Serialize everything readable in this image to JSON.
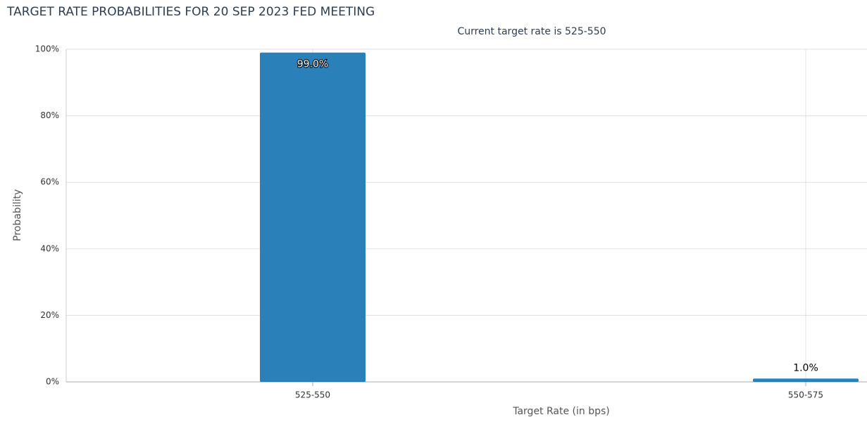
{
  "chart_data": {
    "type": "bar",
    "title": "TARGET RATE PROBABILITIES FOR 20 SEP 2023 FED MEETING",
    "subtitle": "Current target rate is 525-550",
    "x_label": "Target Rate (in bps)",
    "y_label": "Probability",
    "categories": [
      "525-550",
      "550-575"
    ],
    "values": [
      99.0,
      1.0
    ],
    "value_labels": [
      "99.0%",
      "1.0%"
    ],
    "color": "#2a80b9",
    "ylim": [
      0,
      100
    ],
    "yticks": [
      {
        "value": 0,
        "label": "0%"
      },
      {
        "value": 20,
        "label": "20%"
      },
      {
        "value": 40,
        "label": "40%"
      },
      {
        "value": 60,
        "label": "60%"
      },
      {
        "value": 80,
        "label": "80%"
      },
      {
        "value": 100,
        "label": "100%"
      }
    ],
    "grid": true
  }
}
